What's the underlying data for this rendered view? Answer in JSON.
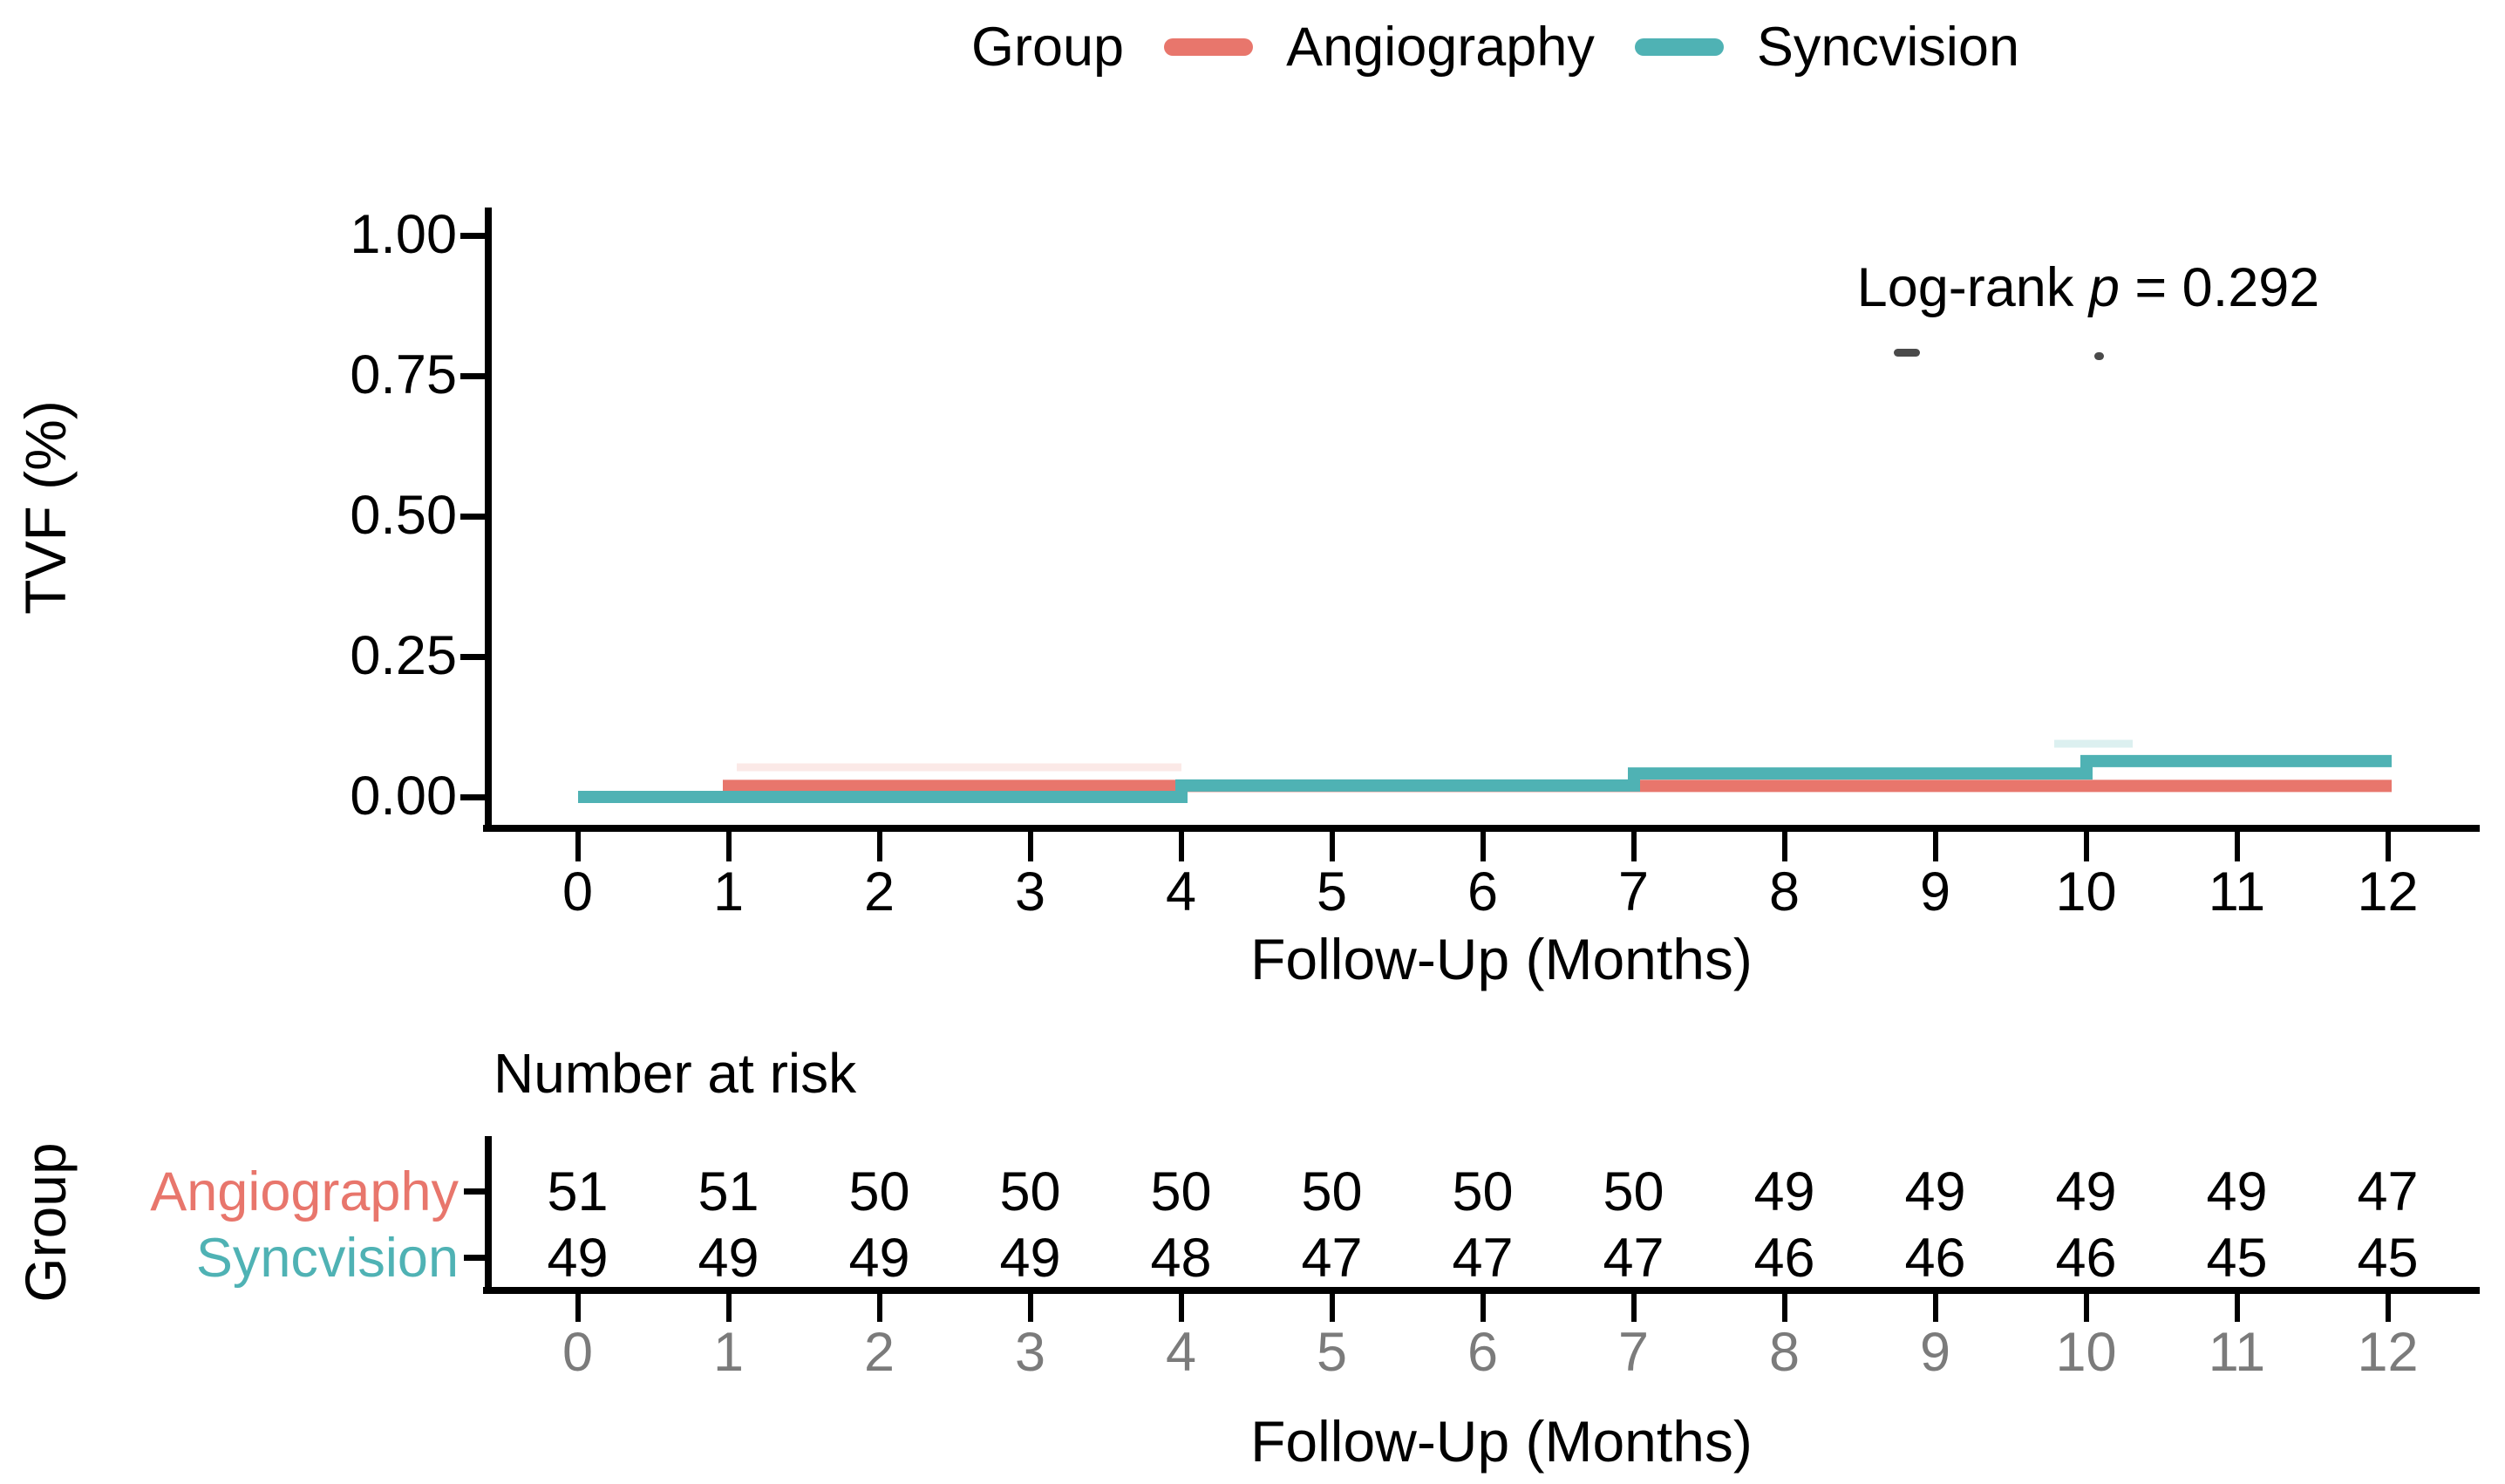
{
  "legend": {
    "title": "Group",
    "items": [
      {
        "label": "Angiography",
        "color": "#E8766C"
      },
      {
        "label": "Syncvision",
        "color": "#4FB2B4"
      }
    ]
  },
  "annotation": {
    "prefix": "Log-rank ",
    "variable": "p",
    "rest": " = 0.292"
  },
  "axes": {
    "y": {
      "title": "TVF (%)",
      "ticks": [
        "1.00",
        "0.75",
        "0.50",
        "0.25",
        "0.00"
      ]
    },
    "x": {
      "title": "Follow-Up (Months)",
      "ticks": [
        "0",
        "1",
        "2",
        "3",
        "4",
        "5",
        "6",
        "7",
        "8",
        "9",
        "10",
        "11",
        "12"
      ]
    }
  },
  "chart_data": {
    "type": "line",
    "subtype": "kaplan-meier-step",
    "title": "",
    "xlabel": "Follow-Up (Months)",
    "ylabel": "TVF (%)",
    "xlim": [
      0,
      12
    ],
    "ylim": [
      0,
      1
    ],
    "x_ticks": [
      0,
      1,
      2,
      3,
      4,
      5,
      6,
      7,
      8,
      9,
      10,
      11,
      12
    ],
    "y_ticks": [
      0.0,
      0.25,
      0.5,
      0.75,
      1.0
    ],
    "grid": false,
    "legend_position": "top",
    "annotation": "Log-rank p = 0.292",
    "series": [
      {
        "name": "Angiography",
        "color": "#E8766C",
        "steps": [
          {
            "t": 0,
            "v": 0
          },
          {
            "t": 1,
            "v": 0.0196
          },
          {
            "t": 12,
            "v": 0.0196
          }
        ]
      },
      {
        "name": "Syncvision",
        "color": "#4FB2B4",
        "steps": [
          {
            "t": 0,
            "v": 0
          },
          {
            "t": 4,
            "v": 0.0204
          },
          {
            "t": 7,
            "v": 0.0417
          },
          {
            "t": 10,
            "v": 0.0639
          },
          {
            "t": 12,
            "v": 0.0639
          }
        ]
      }
    ]
  },
  "risk_table": {
    "title": "Number at risk",
    "group_axis_label": "Group",
    "x_label": "Follow-Up (Months)",
    "x_ticks": [
      "0",
      "1",
      "2",
      "3",
      "4",
      "5",
      "6",
      "7",
      "8",
      "9",
      "10",
      "11",
      "12"
    ],
    "rows": [
      {
        "label": "Angiography",
        "color": "#E8766C",
        "counts": [
          "51",
          "51",
          "50",
          "50",
          "50",
          "50",
          "50",
          "50",
          "49",
          "49",
          "49",
          "49",
          "47"
        ]
      },
      {
        "label": "Syncvision",
        "color": "#4FB2B4",
        "counts": [
          "49",
          "49",
          "49",
          "49",
          "48",
          "47",
          "47",
          "47",
          "46",
          "46",
          "46",
          "45",
          "45"
        ]
      }
    ]
  },
  "colors": {
    "tick_gray": "#7b7b7b",
    "axis_black": "#000000"
  }
}
